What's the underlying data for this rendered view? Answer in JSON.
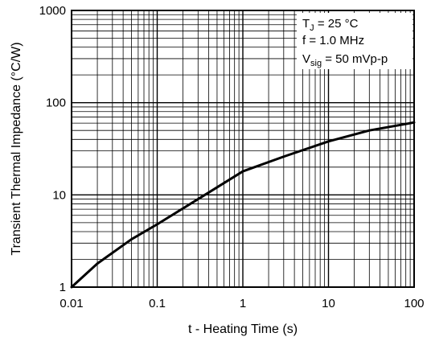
{
  "chart_data": {
    "type": "line",
    "title": "",
    "xlabel": "t - Heating Time (s)",
    "ylabel": "Transient Thermal Impedance (°C/W)",
    "xscale": "log",
    "yscale": "log",
    "xlim": [
      0.01,
      100
    ],
    "ylim": [
      1,
      1000
    ],
    "grid": true,
    "legend": "none",
    "x_ticks": [
      {
        "value": 0.01,
        "label": "0.01"
      },
      {
        "value": 0.1,
        "label": "0.1"
      },
      {
        "value": 1,
        "label": "1"
      },
      {
        "value": 10,
        "label": "10"
      },
      {
        "value": 100,
        "label": "100"
      }
    ],
    "y_ticks": [
      {
        "value": 1,
        "label": "1"
      },
      {
        "value": 10,
        "label": "10"
      },
      {
        "value": 100,
        "label": "100"
      },
      {
        "value": 1000,
        "label": "1000"
      }
    ],
    "series": [
      {
        "color": "#000000",
        "x": [
          0.01,
          0.02,
          0.05,
          0.1,
          0.3,
          1,
          3,
          10,
          30,
          100
        ],
        "y": [
          1,
          1.8,
          3.3,
          4.8,
          9,
          18,
          26,
          38,
          50,
          61
        ]
      }
    ],
    "annotation": {
      "position": "top-right",
      "line1": {
        "main": "T",
        "sub": "J",
        "rest": " = 25 °C"
      },
      "line2": {
        "text": "f = 1.0 MHz"
      },
      "line3": {
        "main": "V",
        "sub": "sig",
        "rest": " = 50 mVp-p"
      }
    }
  }
}
